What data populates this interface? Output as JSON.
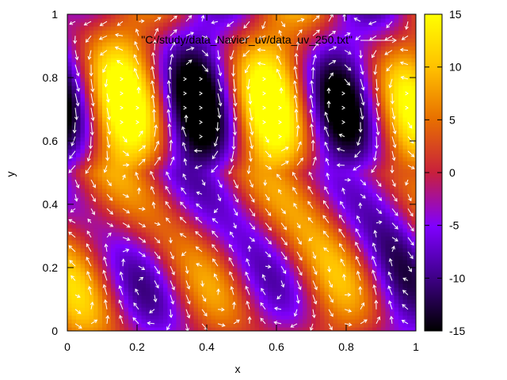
{
  "chart_data": {
    "type": "heatmap",
    "title": "",
    "xlabel": "x",
    "ylabel": "y",
    "xlim": [
      0,
      1
    ],
    "ylim": [
      0,
      1
    ],
    "x_ticks": [
      "0",
      "0.2",
      "0.4",
      "0.6",
      "0.8",
      "1"
    ],
    "y_ticks": [
      "0",
      "0.2",
      "0.4",
      "0.6",
      "0.8",
      "1"
    ],
    "colorbar": {
      "range": [
        -15,
        15
      ],
      "ticks": [
        "15",
        "10",
        "5",
        "0",
        "-5",
        "-10",
        "-15"
      ],
      "colormap": [
        "#000000",
        "#7a00ff",
        "#d0208a",
        "#e86a00",
        "#ffff00"
      ]
    },
    "legend": {
      "label": "\"C:/study/data_Navier_uv/data_uv_250.txt\"",
      "placement": "top-right",
      "series_color": "#ffffff"
    },
    "grid": false,
    "field": {
      "description_values": "scalar field ranging approx -15 to 15 with alternating positive/negative vortex bands",
      "vectors": "white arrows showing velocity field"
    }
  }
}
